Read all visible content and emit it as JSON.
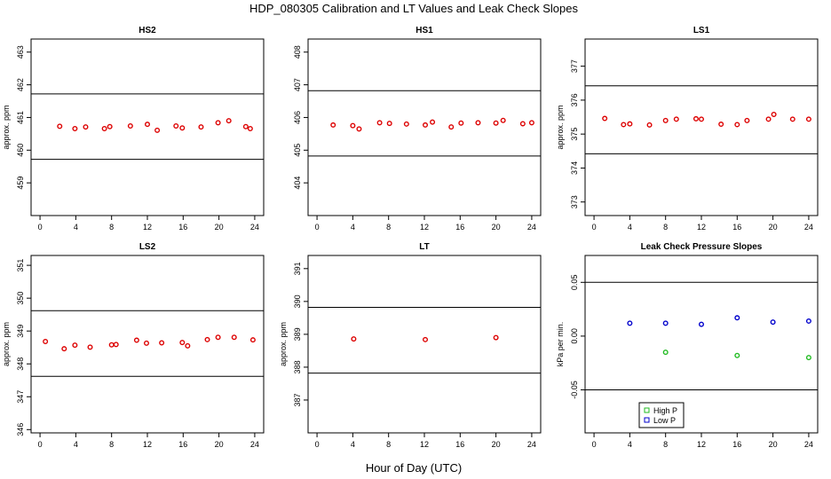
{
  "page": {
    "title": "HDP_080305  Calibration and LT Values and Leak Check Slopes",
    "xlabel": "Hour of Day (UTC)"
  },
  "colors": {
    "axis": "#000000",
    "points_red": "#dd0000",
    "high_p": "#22bb22",
    "low_p": "#0000cc"
  },
  "chart_data": [
    {
      "type": "scatter",
      "title": "HS2",
      "ylabel": "approx. ppm",
      "xlim": [
        -1,
        25
      ],
      "ylim": [
        458.0,
        463.4
      ],
      "xticks": [
        "0",
        "4",
        "8",
        "12",
        "16",
        "20",
        "24"
      ],
      "yticks": [
        "459",
        "460",
        "461",
        "462",
        "463"
      ],
      "hlines": [
        461.72,
        459.72
      ],
      "grid": false,
      "series": [
        {
          "x": [
            2.2,
            3.9,
            5.1,
            7.2,
            7.8,
            10.1,
            12.0,
            13.1,
            15.2,
            15.9,
            18.0,
            19.9,
            21.1,
            23.0,
            23.5
          ],
          "y": [
            460.73,
            460.66,
            460.71,
            460.66,
            460.72,
            460.74,
            460.79,
            460.61,
            460.74,
            460.68,
            460.71,
            460.84,
            460.9,
            460.72,
            460.66
          ]
        }
      ]
    },
    {
      "type": "scatter",
      "title": "HS1",
      "ylabel": "",
      "xlim": [
        -1,
        25
      ],
      "ylim": [
        403.0,
        408.4
      ],
      "xticks": [
        "0",
        "4",
        "8",
        "12",
        "16",
        "20",
        "24"
      ],
      "yticks": [
        "404",
        "405",
        "406",
        "407",
        "408"
      ],
      "hlines": [
        406.82,
        404.82
      ],
      "grid": false,
      "series": [
        {
          "x": [
            1.8,
            4.0,
            4.7,
            7.0,
            8.1,
            10.0,
            12.1,
            12.9,
            15.0,
            16.1,
            18.0,
            20.0,
            20.8,
            23.0,
            24.0
          ],
          "y": [
            405.77,
            405.75,
            405.65,
            405.84,
            405.82,
            405.8,
            405.77,
            405.86,
            405.71,
            405.83,
            405.84,
            405.83,
            405.91,
            405.81,
            405.84
          ]
        }
      ]
    },
    {
      "type": "scatter",
      "title": "LS1",
      "ylabel": "approx. ppm",
      "xlim": [
        -1,
        25
      ],
      "ylim": [
        372.6,
        377.8
      ],
      "xticks": [
        "0",
        "4",
        "8",
        "12",
        "16",
        "20",
        "24"
      ],
      "yticks": [
        "373",
        "374",
        "375",
        "376",
        "377"
      ],
      "hlines": [
        376.42,
        374.42
      ],
      "grid": false,
      "series": [
        {
          "x": [
            1.2,
            3.3,
            4.0,
            6.2,
            8.0,
            9.2,
            11.4,
            12.0,
            14.2,
            16.0,
            17.1,
            19.5,
            20.1,
            22.2,
            24.0
          ],
          "y": [
            375.46,
            375.28,
            375.3,
            375.27,
            375.4,
            375.44,
            375.45,
            375.44,
            375.29,
            375.28,
            375.4,
            375.44,
            375.58,
            375.44,
            375.44
          ]
        }
      ]
    },
    {
      "type": "scatter",
      "title": "LS2",
      "ylabel": "approx. ppm",
      "xlim": [
        -1,
        25
      ],
      "ylim": [
        345.9,
        351.3
      ],
      "xticks": [
        "0",
        "4",
        "8",
        "12",
        "16",
        "20",
        "24"
      ],
      "yticks": [
        "346",
        "347",
        "348",
        "349",
        "350",
        "351"
      ],
      "hlines": [
        349.62,
        347.62
      ],
      "grid": false,
      "series": [
        {
          "x": [
            0.6,
            2.7,
            3.9,
            5.6,
            8.0,
            8.5,
            10.8,
            11.9,
            13.6,
            15.9,
            16.5,
            18.7,
            19.9,
            21.7,
            23.8
          ],
          "y": [
            348.68,
            348.46,
            348.57,
            348.51,
            348.58,
            348.59,
            348.72,
            348.63,
            348.64,
            348.65,
            348.55,
            348.74,
            348.81,
            348.81,
            348.73
          ]
        }
      ]
    },
    {
      "type": "scatter",
      "title": "LT",
      "ylabel": "approx. ppm",
      "xlim": [
        -1,
        25
      ],
      "ylim": [
        386.0,
        391.4
      ],
      "xticks": [
        "0",
        "4",
        "8",
        "12",
        "16",
        "20",
        "24"
      ],
      "yticks": [
        "387",
        "388",
        "389",
        "390",
        "391"
      ],
      "hlines": [
        389.82,
        387.82
      ],
      "grid": false,
      "series": [
        {
          "x": [
            4.1,
            12.1,
            20.0
          ],
          "y": [
            388.86,
            388.84,
            388.9
          ]
        }
      ]
    },
    {
      "type": "scatter",
      "title": "Leak Check Pressure Slopes",
      "ylabel": "kPa per min.",
      "xlim": [
        -1,
        25
      ],
      "ylim": [
        -0.09,
        0.075
      ],
      "xticks": [
        "0",
        "4",
        "8",
        "12",
        "16",
        "20",
        "24"
      ],
      "yticks": [
        "-0.05",
        "0.00",
        "0.05"
      ],
      "hlines": [
        0.05,
        -0.05
      ],
      "grid": false,
      "legend": "bottom-left",
      "series": [
        {
          "name": "High P",
          "color_key": "high_p",
          "x": [
            8.0,
            16.0,
            24.0
          ],
          "y": [
            -0.015,
            -0.018,
            -0.02
          ]
        },
        {
          "name": "Low P",
          "color_key": "low_p",
          "x": [
            4.0,
            8.0,
            12.0,
            16.0,
            20.0,
            24.0
          ],
          "y": [
            0.012,
            0.012,
            0.011,
            0.017,
            0.013,
            0.014
          ]
        }
      ]
    }
  ]
}
